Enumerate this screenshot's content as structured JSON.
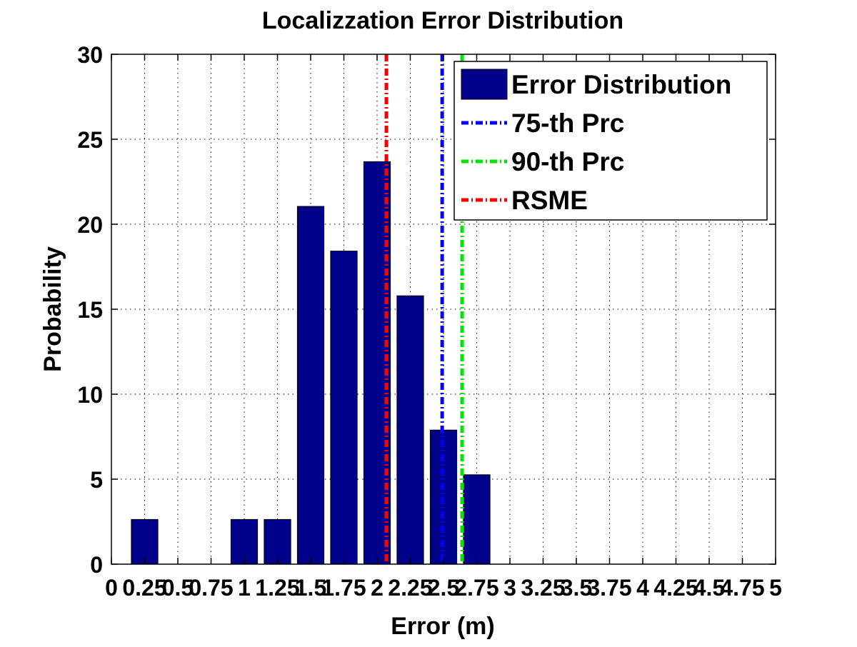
{
  "chart_data": {
    "type": "bar",
    "title": "Localizzation Error Distribution",
    "xlabel": "Error (m)",
    "ylabel": "Probability",
    "xlim": [
      0,
      5
    ],
    "ylim": [
      0,
      30
    ],
    "x_ticks": [
      0,
      0.25,
      0.5,
      0.75,
      1,
      1.25,
      1.5,
      1.75,
      2,
      2.25,
      2.5,
      2.75,
      3,
      3.25,
      3.5,
      3.75,
      4,
      4.25,
      4.5,
      4.75,
      5
    ],
    "x_tick_labels": [
      "0",
      "0.25",
      "0.5",
      "0.75",
      "1",
      "1.25",
      "1.5",
      "1.75",
      "2",
      "2.25",
      "2.5",
      "2.75",
      "3",
      "3.25",
      "3.5",
      "3.75",
      "4",
      "4.25",
      "4.5",
      "4.75",
      "5"
    ],
    "y_ticks": [
      0,
      5,
      10,
      15,
      20,
      25,
      30
    ],
    "y_tick_labels": [
      "0",
      "5",
      "10",
      "15",
      "20",
      "25",
      "30"
    ],
    "grid": true,
    "legend_position": "top-right",
    "bars": {
      "name": "Error Distribution",
      "color": "#00008b",
      "bin_width": 0.25,
      "centers": [
        0.25,
        1.0,
        1.25,
        1.5,
        1.75,
        2.0,
        2.25,
        2.5,
        2.75
      ],
      "values": [
        2.63,
        2.63,
        2.63,
        21.05,
        18.42,
        23.68,
        15.79,
        7.89,
        5.26
      ]
    },
    "vlines": [
      {
        "name": "75-th Prc",
        "x": 2.49,
        "color": "#0000ff"
      },
      {
        "name": "90-th Prc",
        "x": 2.64,
        "color": "#00e600"
      },
      {
        "name": "RSME",
        "x": 2.07,
        "color": "#ff0000"
      }
    ],
    "legend": [
      {
        "label": "Error Distribution",
        "kind": "bar",
        "color": "#00008b"
      },
      {
        "label": "75-th Prc",
        "kind": "line",
        "color": "#0000ff"
      },
      {
        "label": "90-th Prc",
        "kind": "line",
        "color": "#00e600"
      },
      {
        "label": "RSME",
        "kind": "line",
        "color": "#ff0000"
      }
    ]
  }
}
